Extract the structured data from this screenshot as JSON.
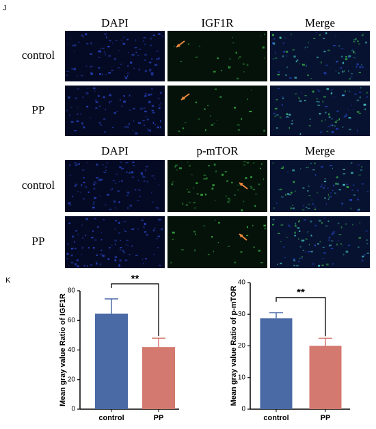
{
  "panels": [
    "J",
    "K"
  ],
  "microscopy": [
    {
      "columns": [
        "DAPI",
        "IGF1R",
        "Merge"
      ],
      "rows": [
        "control",
        "PP"
      ]
    },
    {
      "columns": [
        "DAPI",
        "p-mTOR",
        "Merge"
      ],
      "rows": [
        "control",
        "PP"
      ]
    }
  ],
  "chart_data": [
    {
      "type": "bar",
      "ylabel": "Mean gray value Ratio of IGF1R",
      "categories": [
        "control",
        "PP"
      ],
      "values": [
        64.5,
        42
      ],
      "errors": [
        10,
        6
      ],
      "colors": [
        "#4a6aa6",
        "#d4796f"
      ],
      "ylim": [
        0,
        80
      ],
      "yticks": [
        0,
        20,
        40,
        60,
        80
      ],
      "annotation": "**"
    },
    {
      "type": "bar",
      "ylabel": "Mean gray value Ratio of p-mTOR",
      "categories": [
        "control",
        "PP"
      ],
      "values": [
        28.7,
        20
      ],
      "errors": [
        1.8,
        2.4
      ],
      "colors": [
        "#4a6aa6",
        "#d4796f"
      ],
      "ylim": [
        0,
        40
      ],
      "yticks": [
        0,
        10,
        20,
        30,
        40
      ],
      "annotation": "**"
    }
  ]
}
